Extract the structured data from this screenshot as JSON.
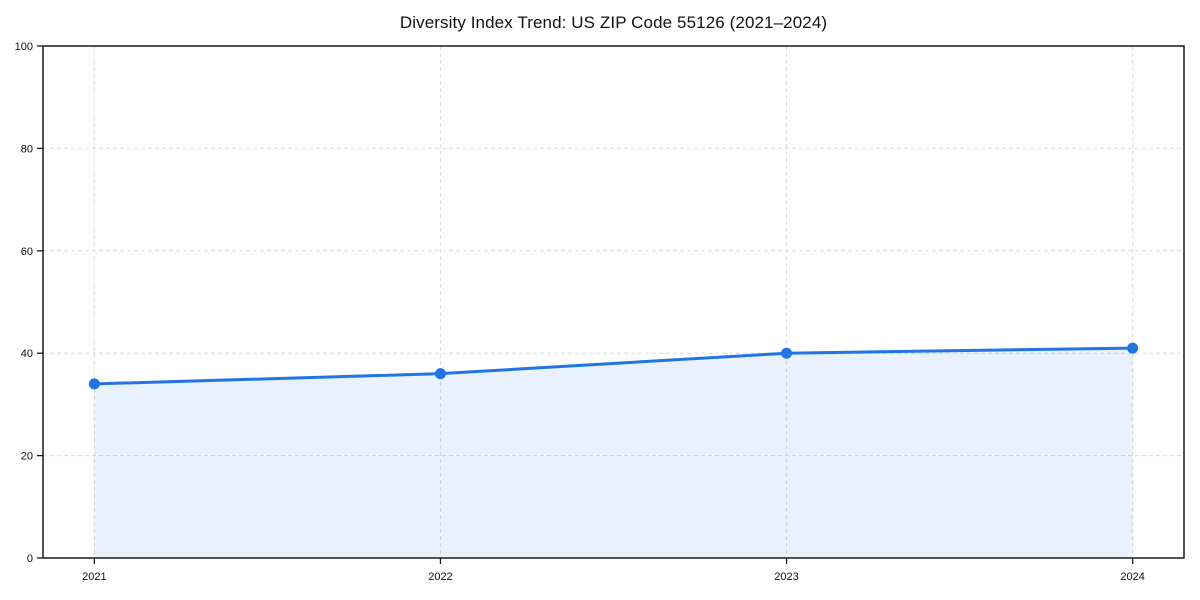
{
  "chart_data": {
    "type": "area",
    "title": "Diversity Index Trend: US ZIP Code 55126 (2021–2024)",
    "categories": [
      "2021",
      "2022",
      "2023",
      "2024"
    ],
    "values": [
      34,
      36,
      40,
      41
    ],
    "series_name": "Diversity Index",
    "xlabel": "",
    "ylabel": "",
    "ylim": [
      0,
      100
    ],
    "yticks": [
      0,
      20,
      40,
      60,
      80,
      100
    ],
    "grid": true,
    "legend_position": "none",
    "line_color": "#2274e4",
    "marker_color": "#2274e4",
    "fill_color": "#2274e4",
    "fill_opacity": 0.1,
    "grid_color": "#dcdcdc",
    "axis_color": "#1a1a1a",
    "text_color": "#111111",
    "background_color": "#ffffff"
  }
}
